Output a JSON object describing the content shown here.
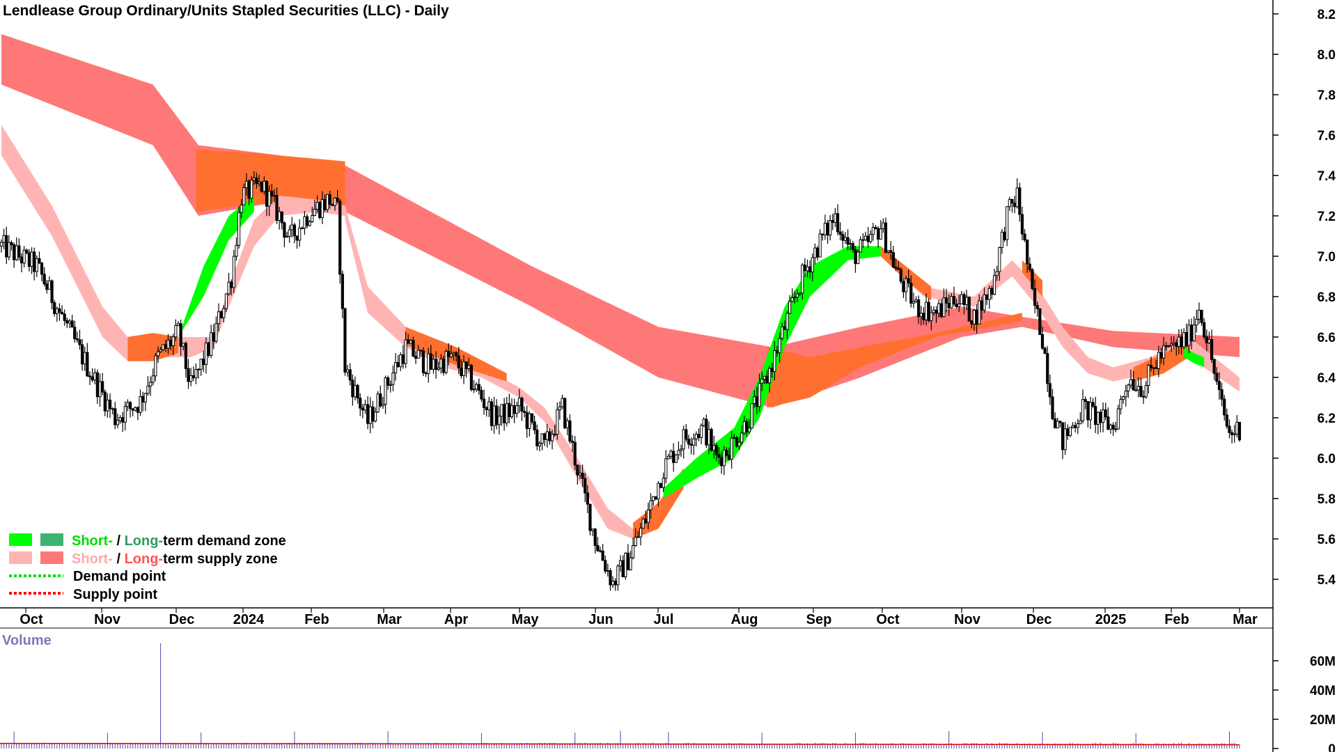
{
  "chart_data": {
    "type": "candlestick",
    "title": "Lendlease Group Ordinary/Units Stapled Securities (LLC) - Daily",
    "y_axis": {
      "ticks": [
        "8.2",
        "8.0",
        "7.8",
        "7.6",
        "7.4",
        "7.2",
        "7.0",
        "6.8",
        "6.6",
        "6.4",
        "6.2",
        "6.0",
        "5.8",
        "5.6",
        "5.4"
      ],
      "range": [
        5.28,
        8.25
      ]
    },
    "x_axis": {
      "ticks": [
        "Oct",
        "Nov",
        "Dec",
        "2024",
        "Feb",
        "Mar",
        "Apr",
        "May",
        "Jun",
        "Jul",
        "Aug",
        "Sep",
        "Oct",
        "Nov",
        "Dec",
        "2025",
        "Feb",
        "Mar"
      ]
    },
    "volume": {
      "title": "Volume",
      "ticks": [
        "60M",
        "40M",
        "20M",
        "0"
      ],
      "range": [
        0,
        80
      ],
      "spike_value": 72,
      "baseline_value": 2.5
    },
    "price_path": [
      [
        0,
        7.05
      ],
      [
        14,
        6.95
      ],
      [
        30,
        6.55
      ],
      [
        45,
        6.2
      ],
      [
        55,
        6.28
      ],
      [
        62,
        6.5
      ],
      [
        70,
        6.62
      ],
      [
        75,
        6.35
      ],
      [
        84,
        6.6
      ],
      [
        91,
        6.9
      ],
      [
        95,
        7.3
      ],
      [
        103,
        7.35
      ],
      [
        110,
        7.2
      ],
      [
        114,
        7.08
      ],
      [
        122,
        7.22
      ],
      [
        130,
        7.28
      ],
      [
        133,
        7.22
      ],
      [
        136,
        6.45
      ],
      [
        145,
        6.18
      ],
      [
        152,
        6.35
      ],
      [
        160,
        6.55
      ],
      [
        170,
        6.45
      ],
      [
        178,
        6.5
      ],
      [
        185,
        6.4
      ],
      [
        195,
        6.2
      ],
      [
        205,
        6.25
      ],
      [
        215,
        6.05
      ],
      [
        222,
        6.25
      ],
      [
        228,
        5.95
      ],
      [
        235,
        5.6
      ],
      [
        242,
        5.38
      ],
      [
        248,
        5.5
      ],
      [
        255,
        5.7
      ],
      [
        262,
        5.95
      ],
      [
        270,
        6.1
      ],
      [
        278,
        6.15
      ],
      [
        283,
        6.0
      ],
      [
        288,
        6.05
      ],
      [
        296,
        6.2
      ],
      [
        303,
        6.4
      ],
      [
        310,
        6.65
      ],
      [
        317,
        6.9
      ],
      [
        323,
        7.05
      ],
      [
        330,
        7.2
      ],
      [
        337,
        7.0
      ],
      [
        342,
        7.05
      ],
      [
        348,
        7.15
      ],
      [
        355,
        6.9
      ],
      [
        362,
        6.75
      ],
      [
        370,
        6.72
      ],
      [
        378,
        6.8
      ],
      [
        385,
        6.7
      ],
      [
        392,
        6.85
      ],
      [
        398,
        7.2
      ],
      [
        402,
        7.3
      ],
      [
        408,
        6.8
      ],
      [
        412,
        6.6
      ],
      [
        416,
        6.25
      ],
      [
        420,
        6.08
      ],
      [
        428,
        6.25
      ],
      [
        434,
        6.2
      ],
      [
        440,
        6.15
      ],
      [
        446,
        6.4
      ],
      [
        452,
        6.35
      ],
      [
        458,
        6.5
      ],
      [
        464,
        6.55
      ],
      [
        470,
        6.6
      ],
      [
        474,
        6.75
      ],
      [
        478,
        6.55
      ],
      [
        482,
        6.3
      ],
      [
        486,
        6.12
      ],
      [
        490,
        6.15
      ]
    ],
    "bands": [
      {
        "kind": "long-term",
        "start": 0,
        "end": 490,
        "fill": "#ff7878",
        "top": [
          [
            0,
            8.1
          ],
          [
            60,
            7.85
          ],
          [
            78,
            7.55
          ],
          [
            110,
            7.5
          ],
          [
            136,
            7.45
          ],
          [
            210,
            6.95
          ],
          [
            260,
            6.65
          ],
          [
            305,
            6.55
          ],
          [
            340,
            6.65
          ],
          [
            380,
            6.75
          ],
          [
            404,
            6.7
          ],
          [
            440,
            6.63
          ],
          [
            490,
            6.6
          ]
        ],
        "bot": [
          [
            0,
            7.85
          ],
          [
            60,
            7.55
          ],
          [
            78,
            7.2
          ],
          [
            110,
            7.27
          ],
          [
            136,
            7.22
          ],
          [
            210,
            6.75
          ],
          [
            260,
            6.4
          ],
          [
            305,
            6.25
          ],
          [
            340,
            6.4
          ],
          [
            380,
            6.6
          ],
          [
            404,
            6.65
          ],
          [
            440,
            6.55
          ],
          [
            490,
            6.5
          ]
        ]
      },
      {
        "kind": "long-term",
        "start": 77,
        "end": 136,
        "fill": "#ff7030",
        "top": [
          [
            77,
            7.53
          ],
          [
            100,
            7.51
          ],
          [
            136,
            7.47
          ]
        ],
        "bot": [
          [
            77,
            7.22
          ],
          [
            100,
            7.26
          ],
          [
            136,
            7.24
          ]
        ]
      },
      {
        "kind": "long-term",
        "start": 303,
        "end": 404,
        "fill": "#ff7030",
        "top": [
          [
            303,
            6.55
          ],
          [
            320,
            6.5
          ],
          [
            340,
            6.55
          ],
          [
            370,
            6.62
          ],
          [
            404,
            6.72
          ]
        ],
        "bot": [
          [
            303,
            6.25
          ],
          [
            320,
            6.3
          ],
          [
            340,
            6.45
          ],
          [
            370,
            6.6
          ],
          [
            404,
            6.68
          ]
        ]
      },
      {
        "kind": "short-term",
        "start": 0,
        "end": 136,
        "fill": "#ffb4b4",
        "top": [
          [
            0,
            7.65
          ],
          [
            20,
            7.25
          ],
          [
            40,
            6.75
          ],
          [
            50,
            6.6
          ],
          [
            60,
            6.6
          ],
          [
            75,
            6.6
          ],
          [
            84,
            6.6
          ],
          [
            90,
            6.85
          ],
          [
            100,
            7.18
          ],
          [
            110,
            7.3
          ],
          [
            125,
            7.28
          ],
          [
            136,
            7.25
          ]
        ],
        "bot": [
          [
            0,
            7.5
          ],
          [
            20,
            7.1
          ],
          [
            40,
            6.6
          ],
          [
            50,
            6.48
          ],
          [
            60,
            6.5
          ],
          [
            75,
            6.5
          ],
          [
            84,
            6.55
          ],
          [
            90,
            6.75
          ],
          [
            100,
            7.05
          ],
          [
            110,
            7.2
          ],
          [
            125,
            7.22
          ],
          [
            136,
            7.2
          ]
        ]
      },
      {
        "kind": "short-term",
        "start": 136,
        "end": 262,
        "fill": "#ffb4b4",
        "top": [
          [
            136,
            7.25
          ],
          [
            145,
            6.85
          ],
          [
            160,
            6.65
          ],
          [
            175,
            6.55
          ],
          [
            190,
            6.45
          ],
          [
            205,
            6.35
          ],
          [
            215,
            6.25
          ],
          [
            228,
            6.0
          ],
          [
            240,
            5.75
          ],
          [
            250,
            5.65
          ],
          [
            262,
            5.8
          ]
        ],
        "bot": [
          [
            136,
            7.18
          ],
          [
            145,
            6.72
          ],
          [
            160,
            6.55
          ],
          [
            175,
            6.45
          ],
          [
            190,
            6.4
          ],
          [
            205,
            6.3
          ],
          [
            215,
            6.18
          ],
          [
            228,
            5.9
          ],
          [
            240,
            5.65
          ],
          [
            250,
            5.6
          ],
          [
            262,
            5.75
          ]
        ]
      },
      {
        "kind": "short-term",
        "start": 348,
        "end": 490,
        "fill": "#ffb4b4",
        "top": [
          [
            348,
            7.05
          ],
          [
            365,
            6.85
          ],
          [
            385,
            6.8
          ],
          [
            400,
            6.98
          ],
          [
            410,
            6.85
          ],
          [
            420,
            6.65
          ],
          [
            430,
            6.5
          ],
          [
            440,
            6.45
          ],
          [
            455,
            6.5
          ],
          [
            470,
            6.6
          ],
          [
            490,
            6.4
          ]
        ],
        "bot": [
          [
            348,
            7.0
          ],
          [
            365,
            6.8
          ],
          [
            385,
            6.75
          ],
          [
            400,
            6.9
          ],
          [
            410,
            6.75
          ],
          [
            420,
            6.55
          ],
          [
            430,
            6.42
          ],
          [
            440,
            6.38
          ],
          [
            455,
            6.42
          ],
          [
            470,
            6.5
          ],
          [
            490,
            6.33
          ]
        ]
      },
      {
        "kind": "short-term",
        "start": 50,
        "end": 70,
        "fill": "#ff7030",
        "top": [
          [
            50,
            6.6
          ],
          [
            60,
            6.62
          ],
          [
            70,
            6.6
          ]
        ],
        "bot": [
          [
            50,
            6.48
          ],
          [
            60,
            6.48
          ],
          [
            70,
            6.52
          ]
        ]
      },
      {
        "kind": "short-term",
        "start": 160,
        "end": 200,
        "fill": "#ff7030",
        "top": [
          [
            160,
            6.65
          ],
          [
            180,
            6.55
          ],
          [
            200,
            6.42
          ]
        ],
        "bot": [
          [
            160,
            6.56
          ],
          [
            180,
            6.46
          ],
          [
            200,
            6.38
          ]
        ]
      },
      {
        "kind": "short-term",
        "start": 250,
        "end": 270,
        "fill": "#ff7030",
        "top": [
          [
            250,
            5.68
          ],
          [
            260,
            5.78
          ],
          [
            270,
            5.95
          ]
        ],
        "bot": [
          [
            250,
            5.6
          ],
          [
            260,
            5.65
          ],
          [
            270,
            5.85
          ]
        ]
      },
      {
        "kind": "short-term",
        "start": 348,
        "end": 368,
        "fill": "#ff7030",
        "top": [
          [
            348,
            7.05
          ],
          [
            358,
            6.95
          ],
          [
            368,
            6.85
          ]
        ],
        "bot": [
          [
            348,
            7.0
          ],
          [
            358,
            6.88
          ],
          [
            368,
            6.78
          ]
        ]
      },
      {
        "kind": "short-term",
        "start": 404,
        "end": 412,
        "fill": "#ff7030",
        "top": [
          [
            404,
            6.98
          ],
          [
            412,
            6.88
          ]
        ],
        "bot": [
          [
            404,
            6.92
          ],
          [
            412,
            6.8
          ]
        ]
      },
      {
        "kind": "short-term",
        "start": 448,
        "end": 470,
        "fill": "#ff7030",
        "top": [
          [
            448,
            6.45
          ],
          [
            460,
            6.52
          ],
          [
            470,
            6.58
          ]
        ],
        "bot": [
          [
            448,
            6.38
          ],
          [
            460,
            6.42
          ],
          [
            470,
            6.5
          ]
        ]
      },
      {
        "kind": "short-term",
        "start": 70,
        "end": 100,
        "fill": "#00ff00",
        "top": [
          [
            70,
            6.6
          ],
          [
            80,
            6.95
          ],
          [
            90,
            7.2
          ],
          [
            100,
            7.3
          ]
        ],
        "bot": [
          [
            70,
            6.6
          ],
          [
            80,
            6.8
          ],
          [
            90,
            7.08
          ],
          [
            100,
            7.22
          ]
        ]
      },
      {
        "kind": "short-term",
        "start": 262,
        "end": 348,
        "fill": "#00ff00",
        "top": [
          [
            262,
            5.85
          ],
          [
            275,
            6.0
          ],
          [
            290,
            6.15
          ],
          [
            300,
            6.4
          ],
          [
            310,
            6.75
          ],
          [
            320,
            6.95
          ],
          [
            335,
            7.05
          ],
          [
            348,
            7.05
          ]
        ],
        "bot": [
          [
            262,
            5.8
          ],
          [
            275,
            5.9
          ],
          [
            290,
            6.0
          ],
          [
            300,
            6.2
          ],
          [
            310,
            6.55
          ],
          [
            320,
            6.8
          ],
          [
            335,
            6.98
          ],
          [
            348,
            7.0
          ]
        ]
      },
      {
        "kind": "short-term",
        "start": 468,
        "end": 476,
        "fill": "#00ff00",
        "top": [
          [
            468,
            6.55
          ],
          [
            472,
            6.52
          ],
          [
            476,
            6.5
          ]
        ],
        "bot": [
          [
            468,
            6.5
          ],
          [
            472,
            6.47
          ],
          [
            476,
            6.45
          ]
        ]
      }
    ]
  },
  "legend": {
    "row1_short": "Short-",
    "row1_sep": " / ",
    "row1_long": "Long-",
    "row1_rest": "term demand zone",
    "row2_short": "Short-",
    "row2_sep": " / ",
    "row2_long": "Long-",
    "row2_rest": "term supply zone",
    "row3": "Demand point",
    "row4": "Supply point",
    "colors": {
      "short_demand": "#00ff00",
      "long_demand": "#3cb371",
      "short_supply": "#ffb4b4",
      "long_supply": "#ff7878",
      "short_demand_text": "#00dd00",
      "long_demand_text": "#2e9e5b",
      "short_supply_text": "#ffaaaa",
      "long_supply_text": "#ff5555",
      "demand_point": "#00dd00",
      "supply_point": "#ff0000"
    }
  }
}
